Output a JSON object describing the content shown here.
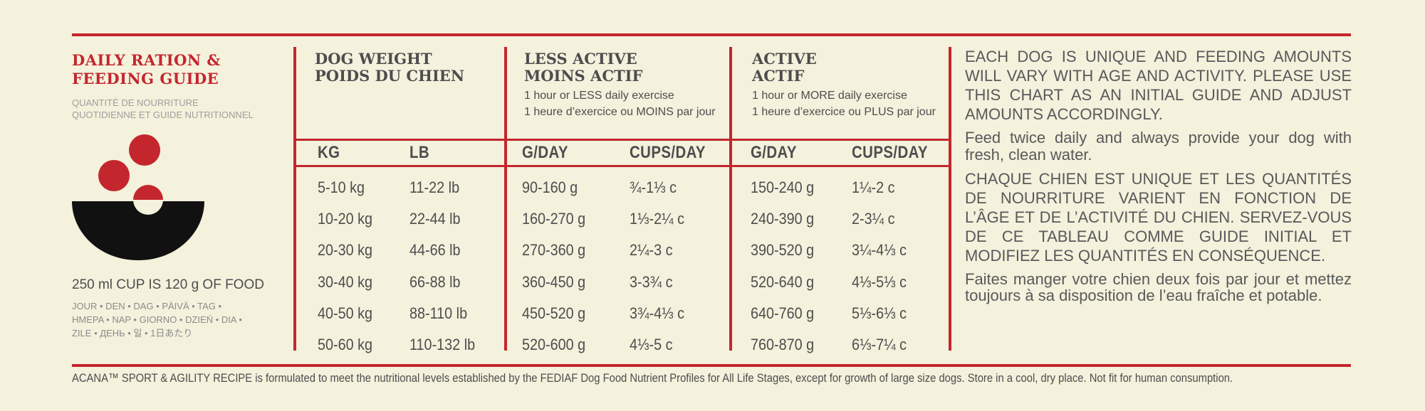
{
  "brand": {
    "title_line1": "DAILY RATION &",
    "title_line2": "FEEDING GUIDE",
    "subtitle_line1": "QUANTITÉ DE NOURRITURE",
    "subtitle_line2": "QUOTIDIENNE ET GUIDE NUTRITIONNEL",
    "cup_note": "250 ml CUP IS 120 g OF FOOD",
    "languages_line1": "JOUR • DEN • DAG • PÄIVÄ • TAG •",
    "languages_line2": "HMEPA • NAP • GIORNO • DZIEŃ • DIA •",
    "languages_line3": "ZILE • ДЕНЬ • 일 • 1日あたり"
  },
  "columns": {
    "weight": {
      "title_line1": "DOG WEIGHT",
      "title_line2": "POIDS DU CHIEN"
    },
    "less_active": {
      "title_line1": "LESS ACTIVE",
      "title_line2": "MOINS ACTIF",
      "sub_line1": "1 hour or LESS daily exercise",
      "sub_line2": "1 heure d’exercice ou MOINS par jour"
    },
    "active": {
      "title_line1": "ACTIVE",
      "title_line2": "ACTIF",
      "sub_line1": "1 hour or MORE daily exercise",
      "sub_line2": "1 heure d’exercice ou PLUS par jour"
    }
  },
  "units": [
    "KG",
    "LB",
    "G/DAY",
    "CUPS/DAY",
    "G/DAY",
    "CUPS/DAY"
  ],
  "rows": [
    [
      "5-10 kg",
      "11-22 lb",
      "90-160 g",
      "¾-1⅓ c",
      "150-240 g",
      "1¼-2 c"
    ],
    [
      "10-20 kg",
      "22-44 lb",
      "160-270 g",
      "1⅓-2¼ c",
      "240-390 g",
      "2-3¼ c"
    ],
    [
      "20-30 kg",
      "44-66 lb",
      "270-360 g",
      "2¼-3 c",
      "390-520 g",
      "3¼-4⅓ c"
    ],
    [
      "30-40 kg",
      "66-88 lb",
      "360-450 g",
      "3-3¾ c",
      "520-640 g",
      "4⅓-5⅓ c"
    ],
    [
      "40-50 kg",
      "88-110 lb",
      "450-520 g",
      "3¾-4⅓ c",
      "640-760 g",
      "5⅓-6⅓ c"
    ],
    [
      "50-60 kg",
      "110-132 lb",
      "520-600 g",
      "4⅓-5 c",
      "760-870 g",
      "6⅓-7¼ c"
    ]
  ],
  "notes": {
    "en_caps": "EACH DOG IS UNIQUE AND FEEDING AMOUNTS WILL VARY WITH AGE AND ACTIVITY. PLEASE USE THIS CHART AS AN INITIAL GUIDE AND ADJUST AMOUNTS ACCORDINGLY.",
    "en_feed": "Feed twice daily and always provide your dog with fresh, clean water.",
    "fr_caps": "CHAQUE CHIEN EST UNIQUE ET LES QUANTITÉS DE NOURRITURE VARIENT EN FONCTION DE L’ÂGE ET DE L’ACTIVITÉ DU CHIEN. SERVEZ-VOUS DE CE TABLEAU COMME GUIDE INITIAL ET MODIFIEZ LES QUANTITÉS EN CONSÉQUENCE.",
    "fr_feed": "Faites manger votre chien deux fois par jour et mettez toujours à sa disposition de l’eau fraîche et potable."
  },
  "footnote": "ACANA™ SPORT & AGILITY RECIPE is formulated to meet the nutritional levels established by the FEDIAF Dog Food Nutrient Profiles for All Life Stages, except for growth of large size dogs. Store in a cool, dry place. Not fit for human consumption.",
  "colors": {
    "accent": "#c4262e",
    "text": "#58595b",
    "background": "#f4f1dc"
  }
}
